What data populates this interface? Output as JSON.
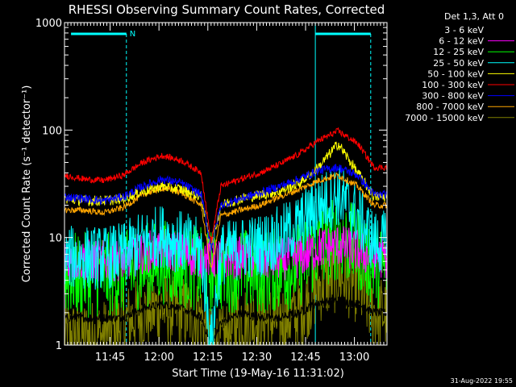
{
  "chart_data": {
    "type": "line",
    "title": "RHESSI Observing Summary Count Rates, Corrected",
    "xlabel": "Start Time (19-May-16 11:31:02)",
    "ylabel": "Corrected Count Rate (s⁻¹ detector⁻¹)",
    "yscale": "log",
    "ylim": [
      1,
      1000
    ],
    "xlim_minutes": [
      0,
      99
    ],
    "x_ticks": [
      {
        "label": "11:45",
        "minute": 14
      },
      {
        "label": "12:00",
        "minute": 29
      },
      {
        "label": "12:15",
        "minute": 44
      },
      {
        "label": "12:30",
        "minute": 59
      },
      {
        "label": "12:45",
        "minute": 74
      },
      {
        "label": "13:00",
        "minute": 89
      }
    ],
    "y_ticks": [
      {
        "label": "1",
        "value": 1
      },
      {
        "label": "10",
        "value": 10
      },
      {
        "label": "100",
        "value": 100
      },
      {
        "label": "1000",
        "value": 1000
      }
    ],
    "legend_title": "Det 1,3, Att 0",
    "legend_position": "right",
    "series": [
      {
        "name": "3 - 6 keV",
        "color": "#000000",
        "minute": [
          0,
          6,
          12,
          18,
          24,
          30,
          36,
          42,
          45,
          48,
          54,
          60,
          66,
          72,
          78,
          84,
          90,
          95
        ],
        "values": [
          1.8,
          1.8,
          1.8,
          1.8,
          2.2,
          2.4,
          2.2,
          1.8,
          1.0,
          1.6,
          2.0,
          1.8,
          1.8,
          2.0,
          2.5,
          2.6,
          2.4,
          2.0
        ]
      },
      {
        "name": "6 - 12 keV",
        "color": "#ff00ff",
        "minute": [
          0,
          6,
          12,
          18,
          24,
          30,
          36,
          42,
          45,
          48,
          54,
          60,
          66,
          72,
          78,
          84,
          90,
          95
        ],
        "values": [
          6.2,
          6.2,
          6.0,
          6.3,
          7.2,
          8.0,
          7.2,
          6.5,
          6.5,
          6.5,
          6.5,
          6.3,
          6.3,
          6.5,
          8.0,
          8.5,
          7.5,
          6.5
        ]
      },
      {
        "name": "12 - 25 keV",
        "color": "#00ff00",
        "minute": [
          0,
          6,
          12,
          18,
          24,
          30,
          36,
          42,
          45,
          48,
          54,
          60,
          66,
          72,
          78,
          84,
          90,
          95
        ],
        "values": [
          4.5,
          4.5,
          4.5,
          4.6,
          5.5,
          6.0,
          5.5,
          5.0,
          5.0,
          5.0,
          5.0,
          4.8,
          5.0,
          5.5,
          8.0,
          10.0,
          8.0,
          5.5
        ]
      },
      {
        "name": "25 - 50 keV",
        "color": "#00ffff",
        "minute": [
          0,
          6,
          12,
          18,
          24,
          30,
          36,
          42,
          45,
          48,
          54,
          60,
          66,
          72,
          78,
          84,
          90,
          95
        ],
        "values": [
          6.5,
          6.5,
          6.5,
          7.0,
          9.0,
          10.5,
          9.0,
          7.5,
          1.0,
          7.0,
          8.0,
          8.5,
          10.0,
          13.0,
          20.0,
          25.0,
          16.0,
          9.0
        ]
      },
      {
        "name": "50 - 100 keV",
        "color": "#ffff00",
        "minute": [
          0,
          6,
          12,
          18,
          24,
          30,
          36,
          42,
          45,
          48,
          54,
          60,
          66,
          72,
          78,
          84,
          90,
          95
        ],
        "values": [
          23,
          22,
          22,
          23,
          27,
          30,
          28,
          24,
          8,
          20,
          23,
          25,
          27,
          32,
          45,
          75,
          40,
          24
        ]
      },
      {
        "name": "100 - 300 keV",
        "color": "#ff0000",
        "minute": [
          0,
          6,
          12,
          18,
          24,
          30,
          36,
          42,
          45,
          48,
          54,
          60,
          66,
          72,
          78,
          84,
          90,
          95
        ],
        "values": [
          38,
          35,
          34,
          38,
          50,
          58,
          52,
          40,
          9,
          30,
          35,
          40,
          48,
          60,
          80,
          98,
          75,
          45
        ]
      },
      {
        "name": "300 - 800 keV",
        "color": "#0000ff",
        "minute": [
          0,
          6,
          12,
          18,
          24,
          30,
          36,
          42,
          45,
          48,
          54,
          60,
          66,
          72,
          78,
          84,
          90,
          95
        ],
        "values": [
          24,
          23,
          22,
          24,
          30,
          35,
          32,
          25,
          8,
          20,
          23,
          26,
          30,
          35,
          42,
          45,
          38,
          25
        ]
      },
      {
        "name": "800 - 7000 keV",
        "color": "#ffa500",
        "minute": [
          0,
          6,
          12,
          18,
          24,
          30,
          36,
          42,
          45,
          48,
          54,
          60,
          66,
          72,
          78,
          84,
          90,
          95
        ],
        "values": [
          18,
          18,
          17,
          19,
          25,
          29,
          26,
          20,
          5,
          16,
          18,
          20,
          24,
          28,
          34,
          38,
          30,
          20
        ]
      },
      {
        "name": "7000 - 15000 keV",
        "color": "#808000",
        "minute": [
          0,
          6,
          12,
          18,
          24,
          30,
          36,
          42,
          45,
          48,
          54,
          60,
          66,
          72,
          78,
          84,
          90,
          95
        ],
        "values": [
          1.2,
          1.2,
          1.2,
          1.6,
          2.0,
          2.2,
          2.0,
          1.8,
          1.0,
          1.0,
          1.8,
          1.7,
          1.7,
          2.0,
          3.5,
          4.5,
          3.5,
          2.0
        ]
      }
    ],
    "annotations": [
      {
        "text": "N",
        "color": "#00ffff"
      }
    ],
    "footer": "31-Aug-2022 19:55"
  }
}
